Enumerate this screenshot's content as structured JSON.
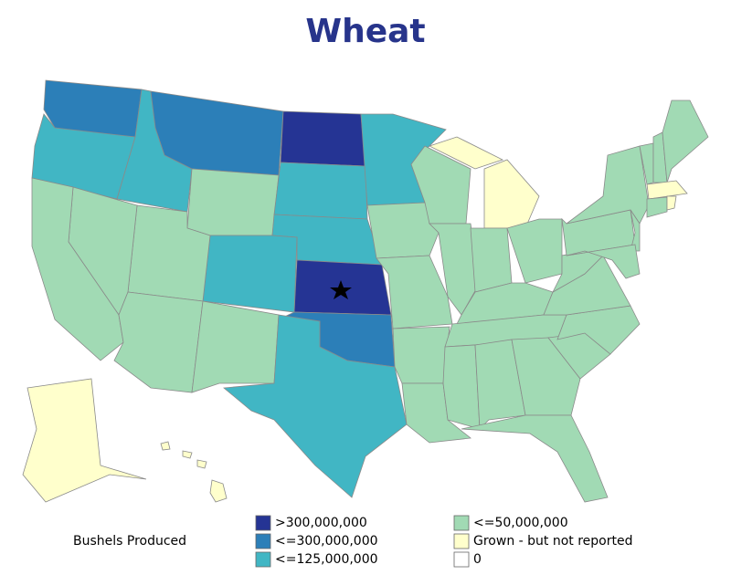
{
  "map": {
    "title": "Wheat",
    "legend": {
      "title": "Bushels Produced",
      "items": [
        {
          "label": ">300,000,000",
          "color": "#253494"
        },
        {
          "label": "<=300,000,000",
          "color": "#2c7fb8"
        },
        {
          "label": "<=125,000,000",
          "color": "#41b6c4"
        },
        {
          "label": "<=50,000,000",
          "color": "#a1dab4"
        },
        {
          "label": "Grown - but not reported",
          "color": "#ffffcc"
        },
        {
          "label": "0",
          "color": "#ffffff"
        }
      ]
    }
  }
}
